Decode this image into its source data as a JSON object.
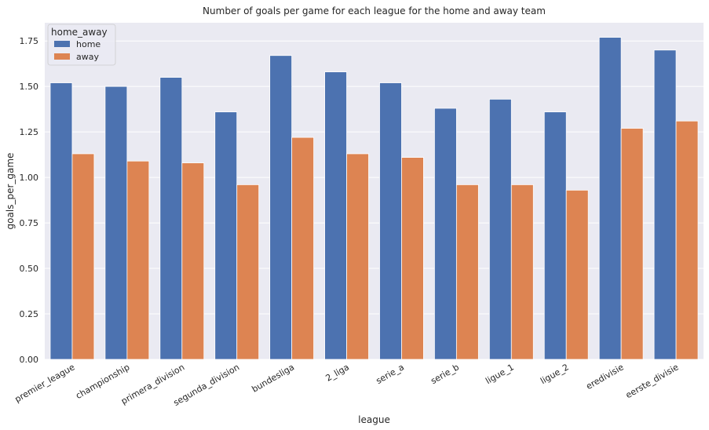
{
  "chart_data": {
    "type": "bar",
    "title": "Number of goals per game for each league for the home and away team",
    "xlabel": "league",
    "ylabel": "goals_per_game",
    "categories": [
      "premier_league",
      "championship",
      "primera_division",
      "segunda_division",
      "bundesliga",
      "2_liga",
      "serie_a",
      "serie_b",
      "ligue_1",
      "ligue_2",
      "eredivisie",
      "eerste_divisie"
    ],
    "series": [
      {
        "name": "home",
        "color": "#4c72b0",
        "values": [
          1.52,
          1.5,
          1.55,
          1.36,
          1.67,
          1.58,
          1.52,
          1.38,
          1.43,
          1.36,
          1.77,
          1.7
        ]
      },
      {
        "name": "away",
        "color": "#dd8452",
        "values": [
          1.13,
          1.09,
          1.08,
          0.96,
          1.22,
          1.13,
          1.11,
          0.96,
          0.96,
          0.93,
          1.27,
          1.31
        ]
      }
    ],
    "ylim": [
      0,
      1.85
    ],
    "yticks": [
      0.0,
      0.25,
      0.5,
      0.75,
      1.0,
      1.25,
      1.5,
      1.75
    ],
    "ytick_labels": [
      "0.00",
      "0.25",
      "0.50",
      "0.75",
      "1.00",
      "1.25",
      "1.50",
      "1.75"
    ],
    "legend": {
      "title": "home_away",
      "position": "top-left"
    },
    "grid": true,
    "background": "#eaeaf2",
    "grid_color": "#ffffff",
    "xtick_rotation_deg": 30
  }
}
